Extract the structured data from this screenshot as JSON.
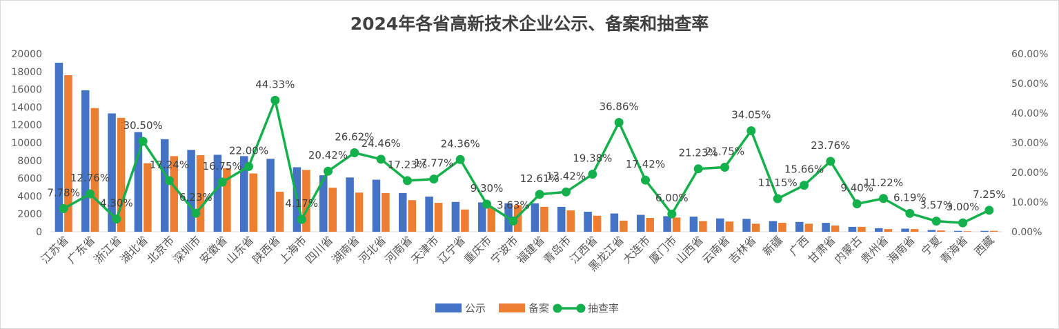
{
  "chart_data": {
    "type": "bar",
    "title": "2024年各省高新技术企业公示、备案和抽查率",
    "categories": [
      "江苏省",
      "广东省",
      "浙江省",
      "湖北省",
      "北京市",
      "深圳市",
      "安徽省",
      "山东省",
      "陕西省",
      "上海市",
      "四川省",
      "湖南省",
      "河北省",
      "河南省",
      "天津市",
      "辽宁省",
      "重庆市",
      "宁波市",
      "福建省",
      "青岛市",
      "江西省",
      "黑龙江省",
      "大连市",
      "厦门市",
      "山西省",
      "云南省",
      "吉林省",
      "新疆",
      "广西",
      "甘肃省",
      "内蒙古",
      "贵州省",
      "海南省",
      "宁夏",
      "青海省",
      "西藏"
    ],
    "series": [
      {
        "name": "公示",
        "kind": "bar",
        "axis": "left",
        "color": "#4472c4",
        "values": [
          19000,
          15900,
          13300,
          11200,
          10400,
          9200,
          8650,
          8500,
          8200,
          7250,
          6350,
          6100,
          5850,
          4350,
          3950,
          3350,
          3300,
          3200,
          3200,
          2800,
          2250,
          2050,
          1900,
          1750,
          1700,
          1500,
          1450,
          1200,
          1100,
          1000,
          550,
          400,
          350,
          200,
          100,
          100
        ]
      },
      {
        "name": "备案",
        "kind": "bar",
        "axis": "left",
        "color": "#ed7d31",
        "values": [
          17600,
          13900,
          12800,
          7700,
          8500,
          8600,
          7150,
          6550,
          4500,
          6950,
          4950,
          4400,
          4350,
          3550,
          3250,
          2500,
          2700,
          3000,
          2800,
          2400,
          1800,
          1250,
          1550,
          1600,
          1200,
          1150,
          900,
          1000,
          900,
          700,
          550,
          300,
          300,
          150,
          60,
          100
        ]
      },
      {
        "name": "抽查率",
        "kind": "line",
        "axis": "right",
        "color": "#13b04b",
        "values": [
          7.78,
          12.76,
          4.3,
          30.5,
          17.24,
          6.23,
          16.75,
          22.0,
          44.33,
          4.17,
          20.42,
          26.62,
          24.46,
          17.23,
          17.77,
          24.36,
          9.3,
          3.63,
          12.61,
          13.42,
          19.38,
          36.86,
          17.42,
          6.0,
          21.23,
          21.75,
          34.05,
          11.15,
          15.66,
          23.76,
          9.4,
          11.22,
          6.19,
          3.57,
          3.0,
          7.25
        ],
        "labels": [
          "7.78%",
          "12.76%",
          "4.30%",
          "30.50%",
          "17.24%",
          "6.23%",
          "16.75%",
          "22.00%",
          "44.33%",
          "4.17%",
          "20.42%",
          "26.62%",
          "24.46%",
          "17.23%",
          "17.77%",
          "24.36%",
          "9.30%",
          "3.63%",
          "12.61%",
          "13.42%",
          "19.38%",
          "36.86%",
          "17.42%",
          "6.00%",
          "21.23%",
          "21.75%",
          "34.05%",
          "11.15%",
          "15.66%",
          "23.76%",
          "9.40%",
          "11.22%",
          "6.19%",
          "3.57%",
          "3.00%",
          "7.25%"
        ]
      }
    ],
    "y_left": {
      "min": 0,
      "max": 20000,
      "ticks": [
        "0",
        "2000",
        "4000",
        "6000",
        "8000",
        "10000",
        "12000",
        "14000",
        "16000",
        "18000",
        "20000"
      ]
    },
    "y_right": {
      "min": 0,
      "max": 60,
      "ticks": [
        "0.00%",
        "10.00%",
        "20.00%",
        "30.00%",
        "40.00%",
        "50.00%",
        "60.00%"
      ]
    },
    "legend": {
      "position": "bottom",
      "items": [
        "公示",
        "备案",
        "抽查率"
      ]
    },
    "grid": false
  }
}
